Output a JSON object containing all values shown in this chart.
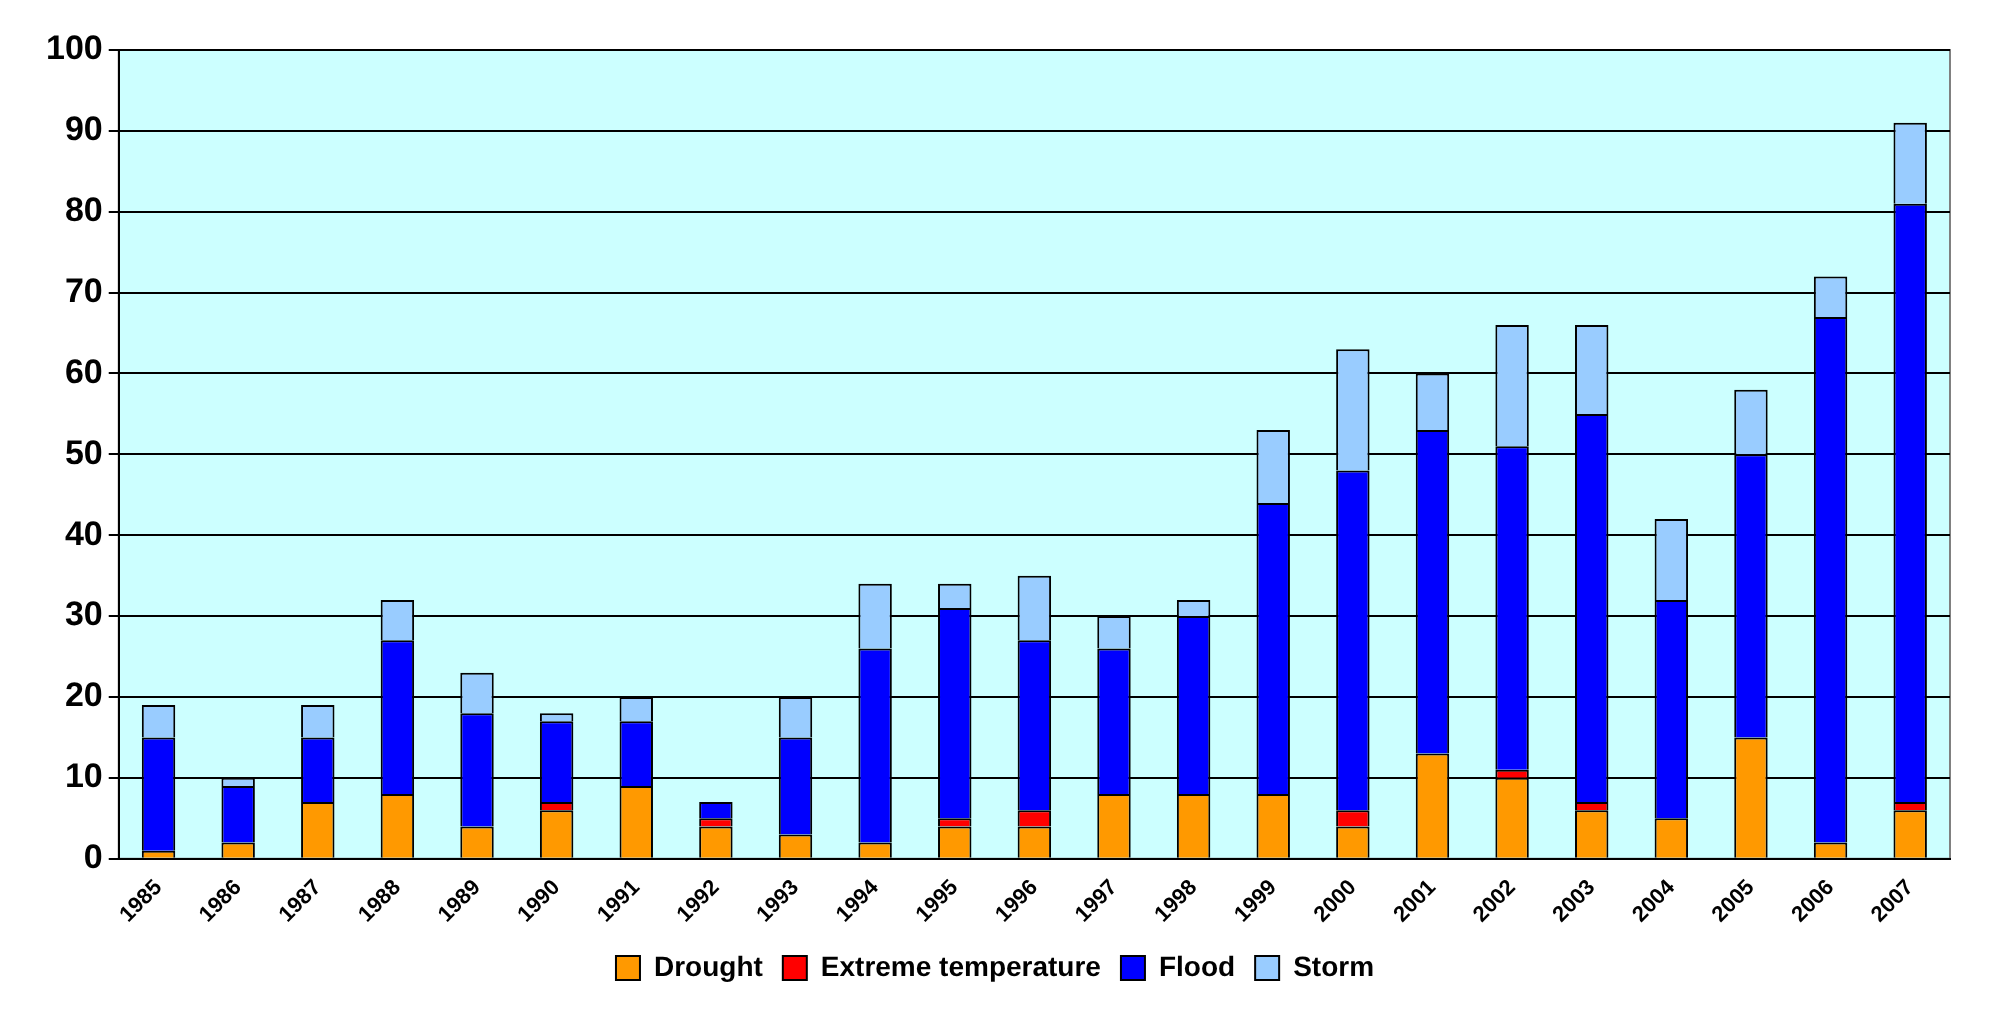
{
  "chart_data": {
    "type": "bar",
    "stacked": true,
    "categories": [
      "1985",
      "1986",
      "1987",
      "1988",
      "1989",
      "1990",
      "1991",
      "1992",
      "1993",
      "1994",
      "1995",
      "1996",
      "1997",
      "1998",
      "1999",
      "2000",
      "2001",
      "2002",
      "2003",
      "2004",
      "2005",
      "2006",
      "2007"
    ],
    "series": [
      {
        "name": "Drought",
        "color": "#ff9900",
        "values": [
          1,
          2,
          7,
          8,
          4,
          6,
          9,
          4,
          3,
          2,
          4,
          4,
          8,
          8,
          8,
          4,
          13,
          10,
          6,
          5,
          15,
          2,
          6
        ]
      },
      {
        "name": "Extreme temperature",
        "color": "#ff0000",
        "values": [
          0,
          0,
          0,
          0,
          0,
          1,
          0,
          1,
          0,
          0,
          1,
          2,
          0,
          0,
          0,
          2,
          0,
          1,
          1,
          0,
          0,
          0,
          1
        ]
      },
      {
        "name": "Flood",
        "color": "#0000ff",
        "values": [
          14,
          7,
          8,
          19,
          14,
          10,
          8,
          2,
          12,
          24,
          26,
          21,
          18,
          22,
          36,
          42,
          40,
          40,
          48,
          27,
          35,
          65,
          74
        ]
      },
      {
        "name": "Storm",
        "color": "#99ccff",
        "values": [
          4,
          1,
          4,
          5,
          5,
          1,
          3,
          0,
          5,
          8,
          3,
          8,
          4,
          2,
          9,
          15,
          7,
          15,
          11,
          10,
          8,
          5,
          10
        ]
      }
    ],
    "ylim": [
      0,
      100
    ],
    "yticks": [
      0,
      10,
      20,
      30,
      40,
      50,
      60,
      70,
      80,
      90,
      100
    ],
    "grid": "y",
    "legend": "bottom"
  }
}
